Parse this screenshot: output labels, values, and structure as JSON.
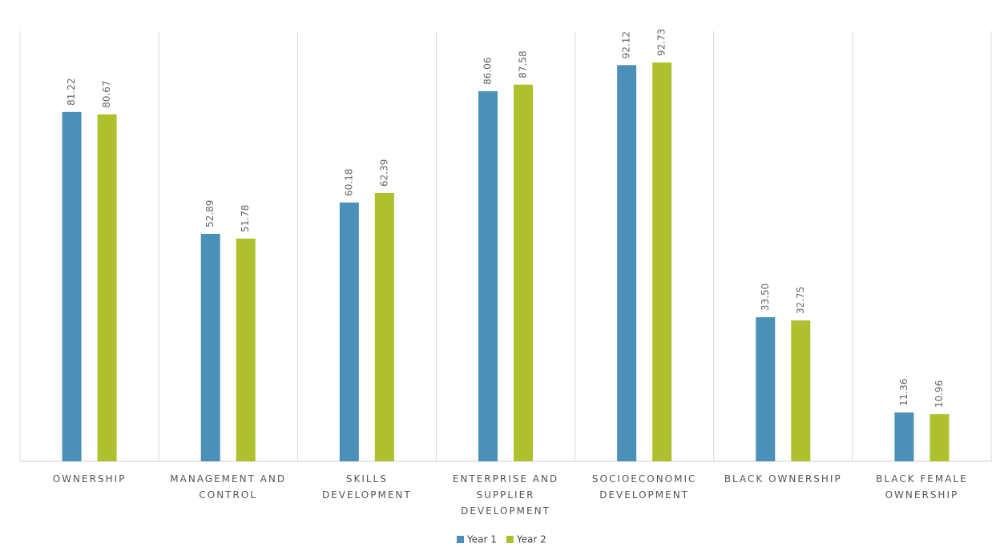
{
  "chart_data": {
    "type": "bar",
    "categories": [
      "OWNERSHIP",
      "MANAGEMENT AND CONTROL",
      "SKILLS DEVELOPMENT",
      "ENTERPRISE AND SUPPLIER DEVELOPMENT",
      "SOCIOECONOMIC DEVELOPMENT",
      "BLACK OWNERSHIP",
      "BLACK FEMALE OWNERSHIP"
    ],
    "series": [
      {
        "name": "Year 1",
        "color": "#4a90b8",
        "values": [
          81.22,
          52.89,
          60.18,
          86.06,
          92.12,
          33.5,
          11.36
        ],
        "value_labels": [
          "81.22",
          "52.89",
          "60.18",
          "86.06",
          "92.12",
          "33.50",
          "11.36"
        ]
      },
      {
        "name": "Year 2",
        "color": "#afc02e",
        "values": [
          80.67,
          51.78,
          62.39,
          87.58,
          92.73,
          32.75,
          10.96
        ],
        "value_labels": [
          "80.67",
          "51.78",
          "62.39",
          "87.58",
          "92.73",
          "32.75",
          "10.96"
        ]
      }
    ],
    "ylim": [
      0,
      100
    ],
    "legend": "bottom"
  }
}
